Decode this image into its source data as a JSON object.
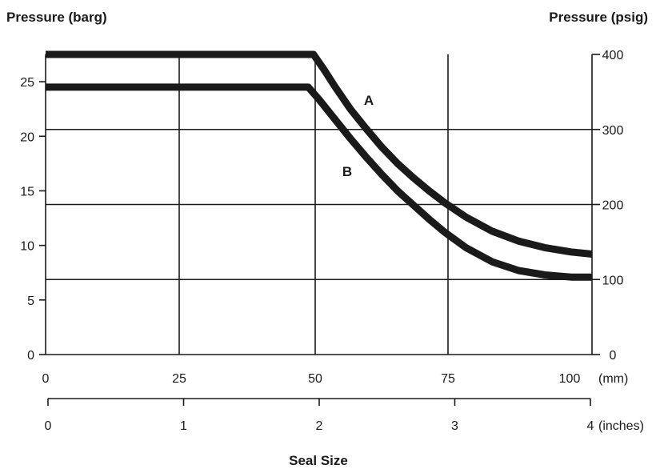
{
  "chart_data": {
    "type": "line",
    "ylabel_left": "Pressure (barg)",
    "ylabel_right": "Pressure (psig)",
    "xlabel": "Seal Size",
    "x_units_mm": "(mm)",
    "x_units_inches": "(inches)",
    "xlim_mm": [
      0,
      104
    ],
    "ylim_barg": [
      0,
      27.5
    ],
    "ylim_psig": [
      0,
      400
    ],
    "grid": true,
    "left_ticks": [
      "0",
      "5",
      "10",
      "15",
      "20",
      "25"
    ],
    "right_ticks": [
      "0",
      "100",
      "200",
      "300",
      "400"
    ],
    "mm_ticks": [
      "0",
      "25",
      "50",
      "75",
      "100"
    ],
    "inch_ticks": [
      "0",
      "1",
      "2",
      "3",
      "4"
    ],
    "series": [
      {
        "name": "A",
        "x": [
          0,
          51,
          53,
          55,
          58,
          61,
          64,
          67,
          70,
          73,
          76,
          80,
          85,
          90,
          95,
          100,
          104
        ],
        "y": [
          27.5,
          27.5,
          26.1,
          24.6,
          22.5,
          20.7,
          19.0,
          17.5,
          16.2,
          15.0,
          13.9,
          12.6,
          11.3,
          10.4,
          9.8,
          9.4,
          9.2
        ]
      },
      {
        "name": "B",
        "x": [
          0,
          50,
          52,
          55,
          58,
          61,
          64,
          67,
          70,
          73,
          76,
          80,
          85,
          90,
          95,
          100,
          104
        ],
        "y": [
          24.5,
          24.5,
          23.4,
          21.6,
          19.8,
          18.1,
          16.5,
          15.0,
          13.7,
          12.4,
          11.2,
          9.8,
          8.5,
          7.7,
          7.3,
          7.1,
          7.1
        ]
      }
    ]
  }
}
